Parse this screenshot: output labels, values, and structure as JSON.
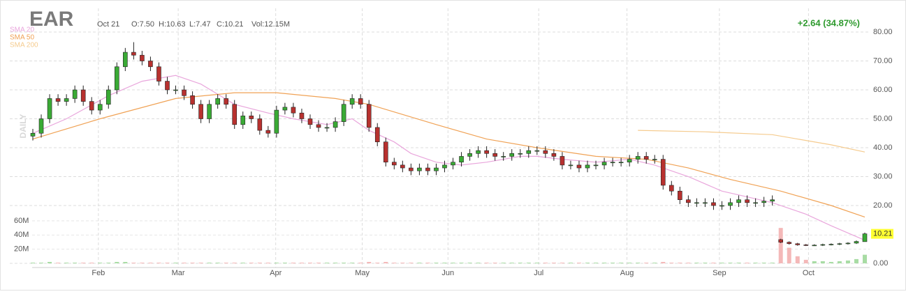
{
  "chart_data": {
    "type": "candlestick",
    "title": "EAR",
    "date": "Oct 21",
    "ohlc_text": [
      "O:7.50",
      "H:10.63",
      "L:7.47",
      "C:10.21"
    ],
    "volume_text": "Vol:12.15M",
    "change_text": "+2.64 (34.87%)",
    "y_axis_label": "DAILY",
    "last_price_label": "10.21",
    "up_color": "#3aaa35",
    "down_color": "#b8312f",
    "volume_up_color": "#a8dca4",
    "volume_down_color": "#f4b8b8",
    "grid": true,
    "open": [
      44,
      45,
      50,
      57,
      56,
      57,
      60,
      56,
      53,
      55,
      60,
      68,
      73,
      72,
      70,
      68,
      63,
      60,
      60,
      58,
      55,
      50,
      55,
      57,
      55,
      48,
      51,
      50,
      46,
      45,
      53,
      54,
      52,
      50,
      48,
      47,
      47,
      49,
      55,
      57,
      55,
      47,
      42,
      35,
      34,
      33,
      32,
      33,
      32,
      33,
      34,
      35,
      37,
      38,
      39,
      38,
      37,
      37,
      38,
      38,
      39,
      39,
      38,
      37,
      34,
      34,
      33,
      34,
      34,
      35,
      35,
      35,
      36,
      37,
      36,
      36,
      27,
      25,
      22,
      21,
      21,
      21,
      20,
      20,
      21,
      22,
      21,
      21,
      21.5,
      8.2,
      7.3,
      6.8,
      6.4,
      6.3,
      6.3,
      6.5,
      6.6,
      6.8,
      7.0,
      7.5
    ],
    "high": [
      46.5,
      51.5,
      58.5,
      58.5,
      58.5,
      61.5,
      61.5,
      57.5,
      56.5,
      61.5,
      69.5,
      74.5,
      76.5,
      73.5,
      71.5,
      69.5,
      64.5,
      61.5,
      61.5,
      59.5,
      56.5,
      56.5,
      58.5,
      58.5,
      56.5,
      52.5,
      52.5,
      51.5,
      47.5,
      54.5,
      55.5,
      55.5,
      53.5,
      51.5,
      49.5,
      48.5,
      50.5,
      56.5,
      58.5,
      58.5,
      56.5,
      48.5,
      43.5,
      36.5,
      35.5,
      34.5,
      34.5,
      34.5,
      34.5,
      35.5,
      36.5,
      38.5,
      39.5,
      40.5,
      40.5,
      39.5,
      38.5,
      39.5,
      39.5,
      40.5,
      40.5,
      40.5,
      39.5,
      38.5,
      35.5,
      35.5,
      35.5,
      35.5,
      36.5,
      36.5,
      36.5,
      37.5,
      38.5,
      38.5,
      37.5,
      37.5,
      28.5,
      26.5,
      23.5,
      22.5,
      22.5,
      22.5,
      21.5,
      22.5,
      23.5,
      23.5,
      22.5,
      23,
      23.5,
      8.5,
      7.6,
      7.1,
      6.7,
      6.6,
      6.8,
      6.9,
      7.1,
      7.3,
      7.9,
      10.63
    ],
    "low": [
      42.5,
      43.5,
      48.5,
      54.5,
      54.5,
      55.5,
      54.5,
      51.5,
      51.5,
      53.5,
      58.5,
      66.5,
      70.5,
      68.5,
      66.5,
      61.5,
      58.5,
      58.5,
      56.5,
      53.5,
      48.5,
      48.5,
      53.5,
      53.5,
      46.5,
      46.5,
      48.5,
      44.5,
      43.5,
      43.5,
      51.5,
      50.5,
      48.5,
      46.5,
      45.5,
      45.5,
      45.5,
      47.5,
      53.5,
      53.5,
      45.5,
      40.5,
      33.5,
      32.5,
      31.5,
      30.5,
      30.5,
      30.5,
      30.5,
      31.5,
      32.5,
      33.5,
      35.5,
      36.5,
      36.5,
      35.5,
      35.5,
      35.5,
      36.5,
      36.5,
      37.5,
      36.5,
      35.5,
      32.5,
      32.5,
      31.5,
      31.5,
      32.5,
      32.5,
      33.5,
      33.5,
      33.5,
      34.5,
      34.5,
      34.5,
      25.5,
      23.5,
      20.5,
      19.5,
      19.5,
      19.5,
      18.5,
      18.5,
      18.5,
      19.5,
      19.5,
      19.5,
      19.5,
      20,
      7.0,
      6.5,
      6.1,
      6.0,
      6.0,
      6.0,
      6.2,
      6.3,
      6.5,
      6.7,
      7.47
    ],
    "close": [
      45,
      50,
      57,
      56,
      57,
      60,
      56,
      53,
      55,
      60,
      68,
      73,
      72,
      70,
      68,
      63,
      60,
      60,
      58,
      55,
      50,
      55,
      57,
      55,
      48,
      51,
      50,
      46,
      45,
      53,
      54,
      52,
      50,
      48,
      47,
      47,
      49,
      55,
      57,
      55,
      47,
      42,
      35,
      34,
      33,
      32,
      33,
      32,
      33,
      34,
      35,
      37,
      38,
      39,
      38,
      37,
      37,
      38,
      38,
      39,
      39,
      38,
      37,
      34,
      34,
      33,
      34,
      34,
      35,
      35,
      35,
      36,
      37,
      36,
      36,
      27,
      25,
      22,
      21,
      21,
      21,
      20,
      20,
      21,
      22,
      21,
      21,
      21.5,
      22,
      7.3,
      6.8,
      6.4,
      6.3,
      6.3,
      6.5,
      6.6,
      6.8,
      7.0,
      7.57,
      10.21
    ],
    "volume": [
      1,
      1,
      2,
      1,
      1,
      1,
      1,
      1,
      1,
      1,
      2,
      2,
      1,
      1,
      1,
      1,
      1,
      1,
      1,
      1,
      1,
      1,
      1,
      1,
      1,
      1,
      1,
      1,
      1,
      1,
      1,
      1,
      1,
      1,
      1,
      1,
      1,
      1,
      1,
      1,
      2,
      1,
      2,
      1,
      1,
      1,
      1,
      1,
      1,
      1,
      1,
      1,
      1,
      1,
      1,
      1,
      1,
      1,
      1,
      1,
      1,
      1,
      1,
      1,
      1,
      1,
      1,
      1,
      1,
      1,
      1,
      1,
      1,
      1,
      1,
      2,
      1,
      1,
      1,
      1,
      1,
      1,
      1,
      1,
      1,
      1,
      1,
      1,
      1,
      50,
      22,
      10,
      5,
      3,
      3,
      2,
      3,
      4,
      6,
      12.15
    ],
    "xlim": [
      0,
      99
    ],
    "xticks": [
      {
        "value": 7.8,
        "label": "Feb"
      },
      {
        "value": 17.3,
        "label": "Mar"
      },
      {
        "value": 28.9,
        "label": "Apr"
      },
      {
        "value": 39.2,
        "label": "May"
      },
      {
        "value": 49.4,
        "label": "Jun"
      },
      {
        "value": 60.2,
        "label": "Jul"
      },
      {
        "value": 70.7,
        "label": "Aug"
      },
      {
        "value": 81.7,
        "label": "Sep"
      },
      {
        "value": 92.3,
        "label": "Oct"
      }
    ],
    "ylim": [
      0,
      80
    ],
    "yticks": [
      {
        "value": 0,
        "label": "0.00"
      },
      {
        "value": 20,
        "label": "20.00"
      },
      {
        "value": 30,
        "label": "30.00"
      },
      {
        "value": 40,
        "label": "40.00"
      },
      {
        "value": 50,
        "label": "50.00"
      },
      {
        "value": 60,
        "label": "60.00"
      },
      {
        "value": 70,
        "label": "70.00"
      },
      {
        "value": 80,
        "label": "80.00"
      }
    ],
    "y2lim": [
      0,
      60
    ],
    "y2ticks": [
      {
        "value": 20,
        "label": "20M"
      },
      {
        "value": 40,
        "label": "40M"
      },
      {
        "value": 60,
        "label": "60M"
      }
    ],
    "series": [
      {
        "name": "SMA 20",
        "color": "#e9a6dc",
        "x": [
          0,
          4,
          9,
          13,
          17,
          20,
          24,
          28,
          31,
          35,
          38,
          40,
          43,
          45,
          48,
          51,
          54,
          58,
          60,
          63,
          67,
          71,
          74,
          78,
          82,
          85,
          88,
          92,
          95,
          99
        ],
        "values": [
          45,
          50,
          58,
          63,
          65,
          62,
          55,
          52,
          50,
          48,
          50,
          46,
          42,
          38,
          35,
          34,
          35,
          37,
          37,
          36,
          35,
          36,
          34,
          30,
          25,
          23,
          21,
          17,
          13,
          8
        ]
      },
      {
        "name": "SMA 50",
        "color": "#f0a255",
        "x": [
          0,
          8,
          17,
          24,
          29,
          36,
          40,
          48,
          54,
          60,
          67,
          73,
          78,
          83,
          89,
          95,
          99
        ],
        "values": [
          43,
          50,
          57,
          59,
          59,
          57,
          55,
          48,
          43,
          40,
          37,
          36,
          33,
          29,
          25,
          20,
          16
        ]
      },
      {
        "name": "SMA 200",
        "color": "#f5cb8e",
        "x": [
          72,
          80,
          88,
          95,
          99
        ],
        "values": [
          46,
          45.5,
          44.5,
          41,
          38.5
        ]
      }
    ]
  }
}
